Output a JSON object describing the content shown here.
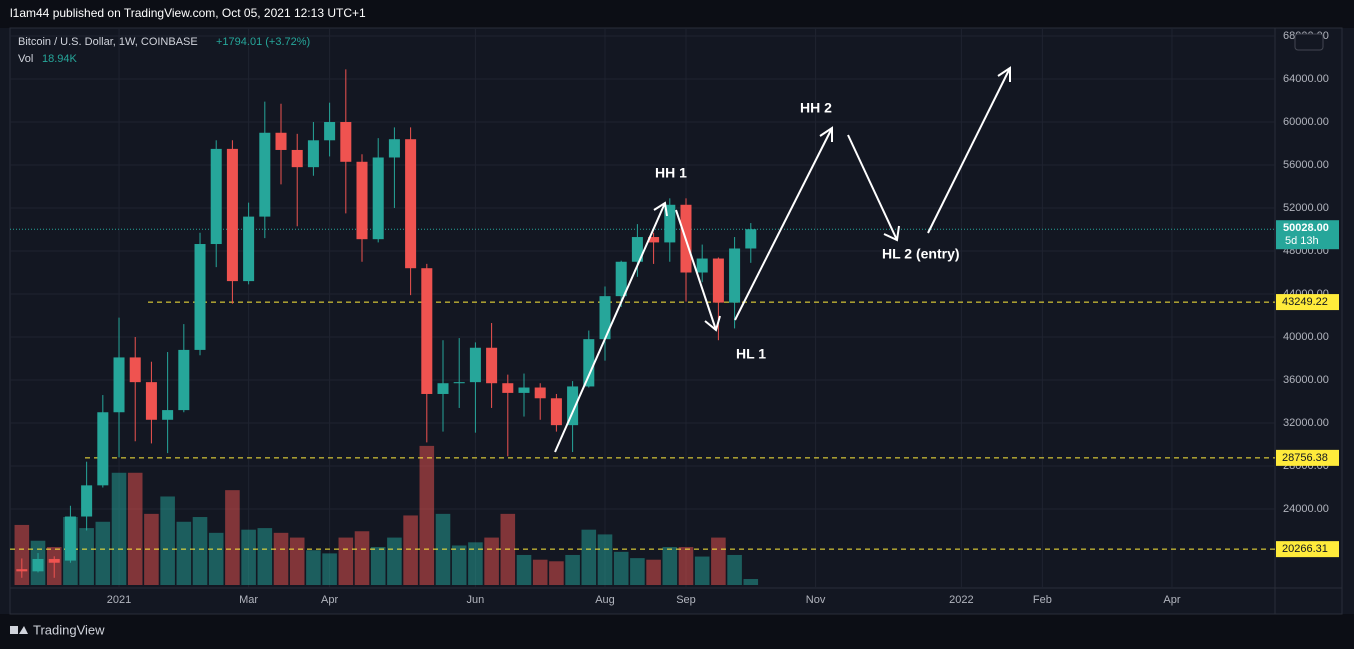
{
  "chart_data": {
    "type": "candlestick",
    "attribution": "l1am44 published on TradingView.com, Oct 05, 2021 12:13 UTC+1",
    "title": "Bitcoin / U.S. Dollar, 1W, COINBASE",
    "change": "+1794.01 (+3.72%)",
    "currency": "USD",
    "brand": "TradingView",
    "up_color": "#26a69a",
    "down_color": "#ef5350",
    "categories": [
      null,
      null,
      null,
      null,
      null,
      null,
      null,
      null,
      null,
      null,
      null,
      null,
      null,
      null,
      null,
      null,
      null,
      null,
      null,
      null,
      null,
      null,
      null,
      null,
      null,
      null,
      null,
      null,
      null,
      null,
      null,
      null,
      null,
      null,
      null,
      null,
      null,
      null,
      null,
      null,
      null,
      null,
      null,
      null,
      null,
      null
    ],
    "open": [
      18400,
      18200,
      19350,
      19200,
      23300,
      26200,
      33000,
      38100,
      35800,
      32300,
      33200,
      38800,
      48650,
      57500,
      45200,
      51200,
      59000,
      57400,
      55800,
      58300,
      60000,
      56300,
      49100,
      56700,
      58400,
      46400,
      34700,
      35700,
      35800,
      39000,
      35700,
      34800,
      35300,
      34300,
      31800,
      35400,
      39800,
      43800,
      47000,
      49300,
      48800,
      52300,
      46000,
      47300,
      43200,
      48234
    ],
    "high": [
      19400,
      19900,
      19600,
      24300,
      28400,
      34600,
      41800,
      40000,
      37700,
      38600,
      41200,
      49700,
      58300,
      58300,
      52500,
      61900,
      61700,
      58900,
      60000,
      61800,
      64900,
      57000,
      58500,
      59500,
      59500,
      46800,
      39700,
      39900,
      39500,
      41300,
      36500,
      36600,
      35700,
      34700,
      35900,
      40600,
      44700,
      47100,
      50500,
      49700,
      52900,
      52900,
      48600,
      47400,
      49300,
      50600
    ],
    "low": [
      17600,
      18100,
      17600,
      19000,
      22000,
      26000,
      28800,
      30300,
      30100,
      29200,
      33000,
      38300,
      46500,
      43100,
      44900,
      49200,
      54200,
      50300,
      55000,
      56800,
      51500,
      47000,
      48800,
      52000,
      43900,
      30200,
      31200,
      33400,
      31100,
      33400,
      28900,
      32600,
      32300,
      31200,
      29300,
      35300,
      37800,
      42800,
      45600,
      46800,
      47000,
      43300,
      45100,
      39700,
      40800,
      46900
    ],
    "close": [
      18200,
      19350,
      19000,
      23300,
      26200,
      33000,
      38100,
      35800,
      32300,
      33200,
      38800,
      48650,
      57500,
      45200,
      51200,
      59000,
      57400,
      55800,
      58300,
      60000,
      56300,
      49100,
      56700,
      58400,
      46400,
      34700,
      35700,
      35800,
      39000,
      35700,
      34800,
      35300,
      34300,
      31800,
      35400,
      39800,
      43800,
      47000,
      49300,
      48800,
      52300,
      46000,
      47300,
      43200,
      48234,
      50028
    ],
    "last_price_label": "50028.00",
    "countdown": "5d 13h",
    "volume": {
      "name": "Vol",
      "axis": "y2",
      "values": [
        190,
        140,
        120,
        215,
        180,
        200,
        355,
        355,
        225,
        280,
        200,
        215,
        165,
        300,
        175,
        180,
        165,
        150,
        110,
        100,
        150,
        170,
        120,
        150,
        220,
        440,
        225,
        125,
        135,
        150,
        225,
        95,
        80,
        75,
        95,
        175,
        160,
        105,
        85,
        80,
        120,
        120,
        90,
        150,
        95,
        18.94
      ],
      "value_labels": [
        null,
        null,
        null,
        null,
        null,
        null,
        null,
        null,
        null,
        null,
        null,
        null,
        null,
        null,
        null,
        null,
        null,
        null,
        null,
        null,
        null,
        null,
        null,
        null,
        null,
        null,
        null,
        null,
        null,
        null,
        null,
        null,
        null,
        null,
        null,
        null,
        null,
        null,
        null,
        null,
        null,
        null,
        null,
        null,
        null,
        "18.94K"
      ]
    },
    "y2lim": [
      0,
      1765
    ],
    "levels": [
      {
        "value": 43249.22,
        "label": "43249.22",
        "color": "#ffeb3b"
      },
      {
        "value": 28756.38,
        "label": "28756.38",
        "color": "#ffeb3b"
      },
      {
        "value": 20266.31,
        "label": "20266.31",
        "color": "#ffeb3b"
      }
    ],
    "annotations": [
      "HH 1",
      "HL 1",
      "HH 2",
      "HL 2 (entry)"
    ],
    "xlim": [
      -0.73,
      77.36
    ],
    "xticks": [
      {
        "value": 6,
        "label": "2021"
      },
      {
        "value": 14,
        "label": "Mar"
      },
      {
        "value": 19,
        "label": "Apr"
      },
      {
        "value": 28,
        "label": "Jun"
      },
      {
        "value": 36,
        "label": "Aug"
      },
      {
        "value": 41,
        "label": "Sep"
      },
      {
        "value": 49,
        "label": "Nov"
      },
      {
        "value": 58,
        "label": "2022"
      },
      {
        "value": 63,
        "label": "Feb"
      },
      {
        "value": 71,
        "label": "Apr"
      }
    ],
    "ylim": [
      16650,
      68560
    ],
    "yticks": [
      {
        "value": 28000,
        "label": "28000.00"
      },
      {
        "value": 32000,
        "label": "32000.00"
      },
      {
        "value": 36000,
        "label": "36000.00"
      },
      {
        "value": 40000,
        "label": "40000.00"
      },
      {
        "value": 44000,
        "label": "44000.00"
      },
      {
        "value": 48000,
        "label": "48000.00"
      },
      {
        "value": 52000,
        "label": "52000.00"
      },
      {
        "value": 56000,
        "label": "56000.00"
      },
      {
        "value": 60000,
        "label": "60000.00"
      },
      {
        "value": 64000,
        "label": "64000.00"
      },
      {
        "value": 68000,
        "label": "68000.00"
      },
      {
        "value": 24000,
        "label": "24000.00"
      }
    ],
    "grid": true
  }
}
